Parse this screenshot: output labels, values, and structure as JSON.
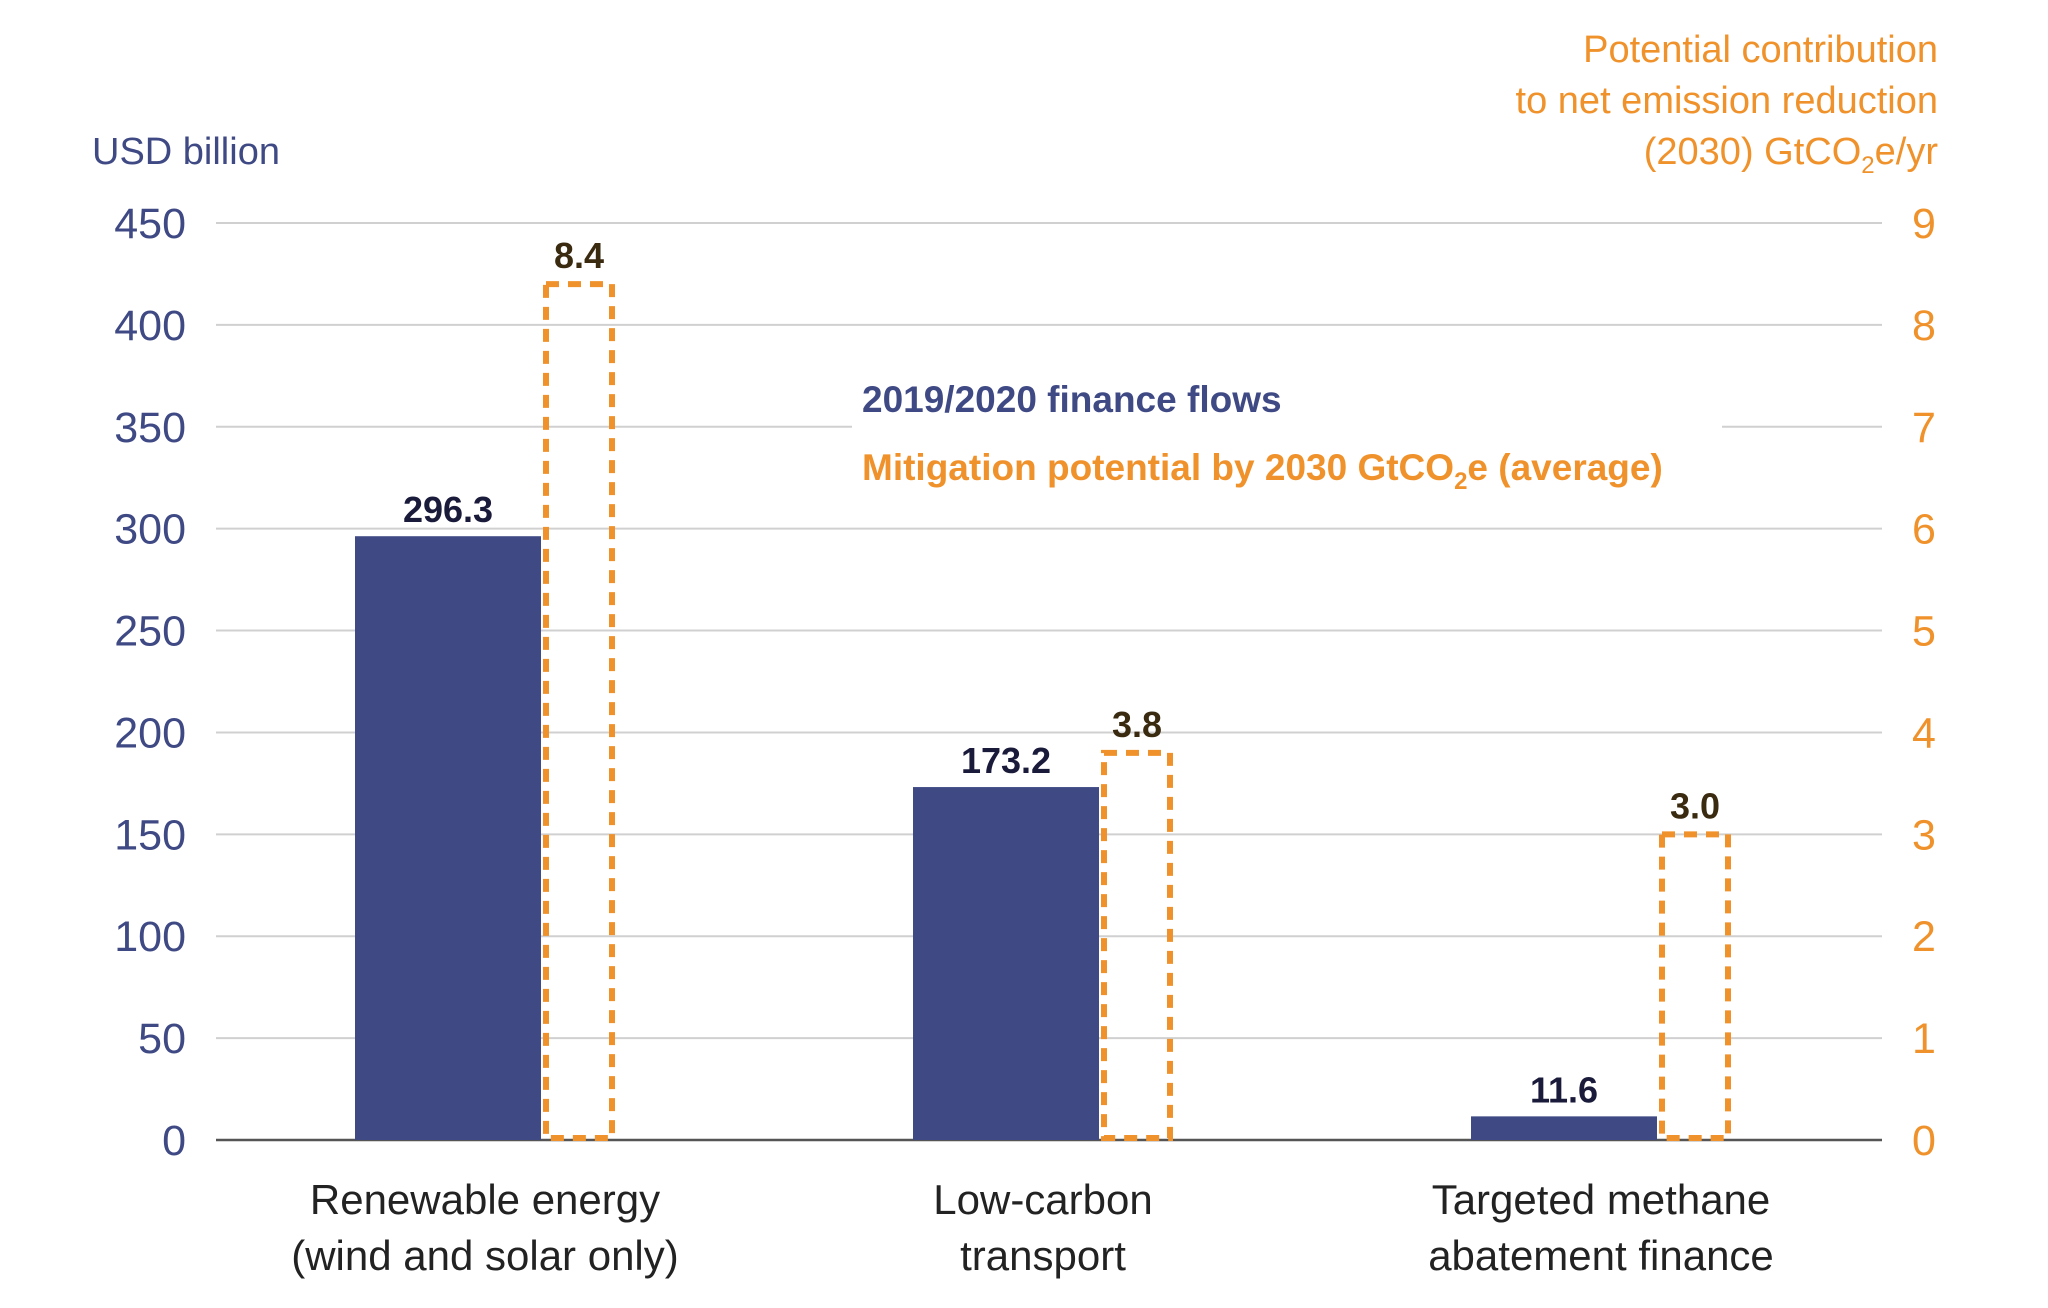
{
  "chart_data": {
    "type": "bar",
    "categories": [
      [
        "Renewable energy",
        "(wind and solar only)"
      ],
      [
        "Low-carbon",
        "transport"
      ],
      [
        "Targeted methane",
        "abatement finance"
      ]
    ],
    "series": [
      {
        "name": "2019/2020 finance flows",
        "axis": "left",
        "values": [
          296.3,
          173.2,
          11.6
        ],
        "value_labels": [
          "296.3",
          "173.2",
          "11.6"
        ],
        "style": "solid"
      },
      {
        "name_parts": [
          "Mitigation potential by 2030 GtCO",
          "2",
          "e (average)"
        ],
        "axis": "right",
        "values": [
          8.4,
          3.8,
          3.0
        ],
        "value_labels": [
          "8.4",
          "3.8",
          "3.0"
        ],
        "style": "dashed-outline"
      }
    ],
    "y_left": {
      "title": "USD billion",
      "range": [
        0,
        450
      ],
      "ticks": [
        "0",
        "50",
        "100",
        "150",
        "200",
        "250",
        "300",
        "350",
        "400",
        "450"
      ]
    },
    "y_right": {
      "title_lines": [
        "Potential contribution",
        "to net emission reduction"
      ],
      "title_last_parts": [
        "(2030) GtCO",
        "2",
        "e/yr"
      ],
      "range": [
        0,
        9
      ],
      "ticks": [
        "0",
        "1",
        "2",
        "3",
        "4",
        "5",
        "6",
        "7",
        "8",
        "9"
      ]
    },
    "grid": true,
    "legend_position": "center"
  },
  "colors": {
    "finance": "#3f4a85",
    "mitigation": "#f0922b",
    "grid": "#d0d0d0",
    "axis": "#555555",
    "value_dark": "#1a1a3a",
    "value_brown": "#3a2a10",
    "category_text": "#222222"
  }
}
